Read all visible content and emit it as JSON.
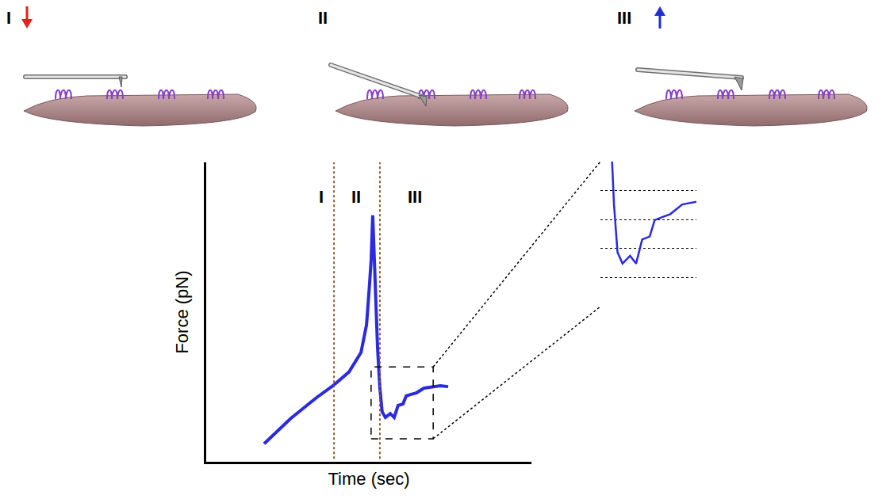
{
  "panels": [
    {
      "label": "I",
      "arrow": "down",
      "color": "#e8201a"
    },
    {
      "label": "II"
    },
    {
      "label": "III",
      "arrow": "up",
      "color": "#2030d0"
    }
  ],
  "chart_data": {
    "type": "line",
    "x_label": "Time (sec)",
    "y_label": "Force (pN)",
    "xlim": [
      0,
      100
    ],
    "ylim": [
      0,
      100
    ],
    "tick_labels": false,
    "color": "#2a2ae0",
    "x": [
      17.8,
      22,
      26,
      30,
      34,
      39,
      43.9,
      47.6,
      49.3,
      50.2,
      50.7,
      51.2,
      51.95,
      52.7,
      53.4,
      54.1,
      55.1,
      56.6,
      57.8,
      59,
      60.5,
      61.5,
      63,
      64.6,
      67,
      69.5,
      72,
      74.4
    ],
    "values": [
      6,
      10.5,
      14.5,
      18,
      21.5,
      25.4,
      30,
      36.5,
      45.8,
      59,
      67,
      82.3,
      59,
      37.8,
      24.6,
      16.7,
      14.8,
      16.1,
      14.8,
      18.8,
      19.3,
      22,
      22.5,
      23,
      24.6,
      25.1,
      25.4,
      25.1
    ],
    "phase_boundaries": [
      39.3,
      53.4
    ],
    "annotations": [
      {
        "text": "I",
        "x": 35.4,
        "y": 88.6
      },
      {
        "text": "II",
        "x": 46.1,
        "y": 88.6
      },
      {
        "text": "III",
        "x": 64.1,
        "y": 88.6
      }
    ],
    "zoom_box": {
      "xlim": [
        50.7,
        69.8
      ],
      "ylim": [
        7.7,
        31.7
      ],
      "yticks": [
        7.7,
        12.5,
        17.3,
        22.1,
        26.9,
        31.7
      ]
    }
  }
}
